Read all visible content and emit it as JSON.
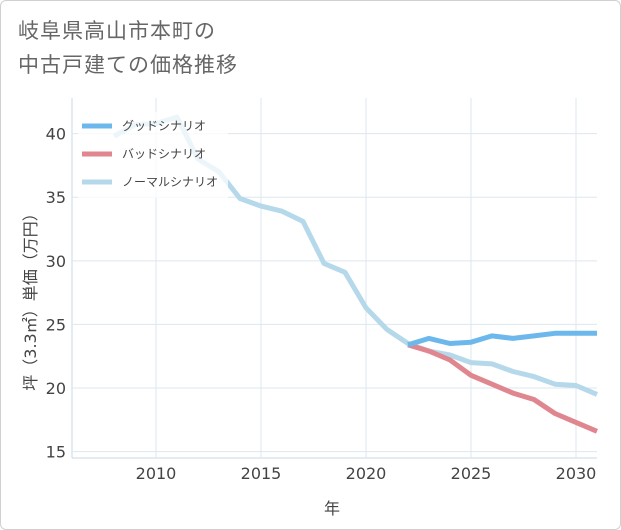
{
  "title": "岐阜県高山市本町の\n中古戸建ての価格推移",
  "chart_data": {
    "type": "line",
    "xlabel": "年",
    "ylabel": "坪（3.3㎡）単価（万円）",
    "xlim": [
      2006,
      2031
    ],
    "ylim": [
      14.5,
      42.8
    ],
    "x_ticks": [
      2010,
      2015,
      2020,
      2025,
      2030
    ],
    "y_ticks": [
      15,
      20,
      25,
      30,
      35,
      40
    ],
    "grid": true,
    "legend_position": "top-left",
    "series": [
      {
        "name": "グッドシナリオ",
        "color": "#6cb8ec",
        "x": [
          2022,
          2023,
          2024,
          2025,
          2026,
          2027,
          2028,
          2029,
          2030,
          2031
        ],
        "y": [
          23.4,
          23.9,
          23.5,
          23.6,
          24.1,
          23.9,
          24.1,
          24.3,
          24.3,
          24.3
        ]
      },
      {
        "name": "バッドシナリオ",
        "color": "#e0868f",
        "x": [
          2022,
          2023,
          2024,
          2025,
          2026,
          2027,
          2028,
          2029,
          2030,
          2031
        ],
        "y": [
          23.4,
          22.9,
          22.2,
          21.0,
          20.3,
          19.6,
          19.1,
          18.0,
          17.3,
          16.6
        ]
      },
      {
        "name": "ノーマルシナリオ",
        "color": "#b5d9ea",
        "x": [
          2008,
          2009,
          2010,
          2011,
          2012,
          2013,
          2014,
          2015,
          2016,
          2017,
          2018,
          2019,
          2020,
          2021,
          2022,
          2023,
          2024,
          2025,
          2026,
          2027,
          2028,
          2029,
          2030,
          2031
        ],
        "y": [
          39.8,
          40.7,
          40.8,
          41.3,
          38.0,
          37.0,
          34.9,
          34.3,
          33.9,
          33.1,
          29.8,
          29.1,
          26.3,
          24.6,
          23.5,
          22.9,
          22.6,
          22.0,
          21.9,
          21.3,
          20.9,
          20.3,
          20.2,
          19.5
        ]
      }
    ]
  }
}
